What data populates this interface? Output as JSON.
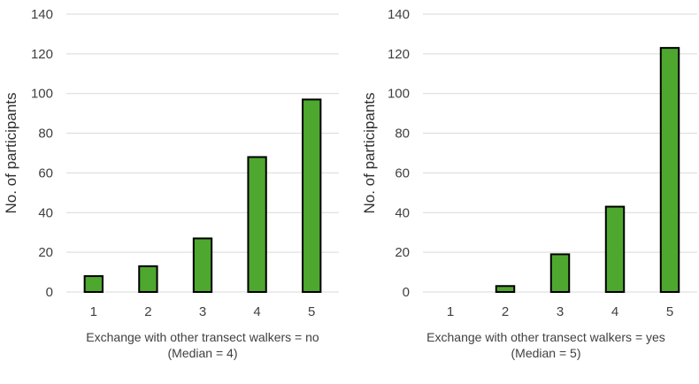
{
  "chart_data": [
    {
      "type": "bar",
      "categories": [
        "1",
        "2",
        "3",
        "4",
        "5"
      ],
      "values": [
        8,
        13,
        27,
        68,
        97
      ],
      "xlabel": "Exchange with other transect walkers = no",
      "xlabel2": "(Median = 4)",
      "ylabel": "No. of participants",
      "ylim": [
        0,
        140
      ],
      "yticks": [
        "0",
        "20",
        "40",
        "60",
        "80",
        "100",
        "120",
        "140"
      ],
      "bar_color": "#4ea72e",
      "grid": true
    },
    {
      "type": "bar",
      "categories": [
        "1",
        "2",
        "3",
        "4",
        "5"
      ],
      "values": [
        0,
        3,
        19,
        43,
        123
      ],
      "xlabel": "Exchange with other transect walkers = yes",
      "xlabel2": "(Median = 5)",
      "ylabel": "No. of participants",
      "ylim": [
        0,
        140
      ],
      "yticks": [
        "0",
        "20",
        "40",
        "60",
        "80",
        "100",
        "120",
        "140"
      ],
      "bar_color": "#4ea72e",
      "grid": true
    }
  ]
}
